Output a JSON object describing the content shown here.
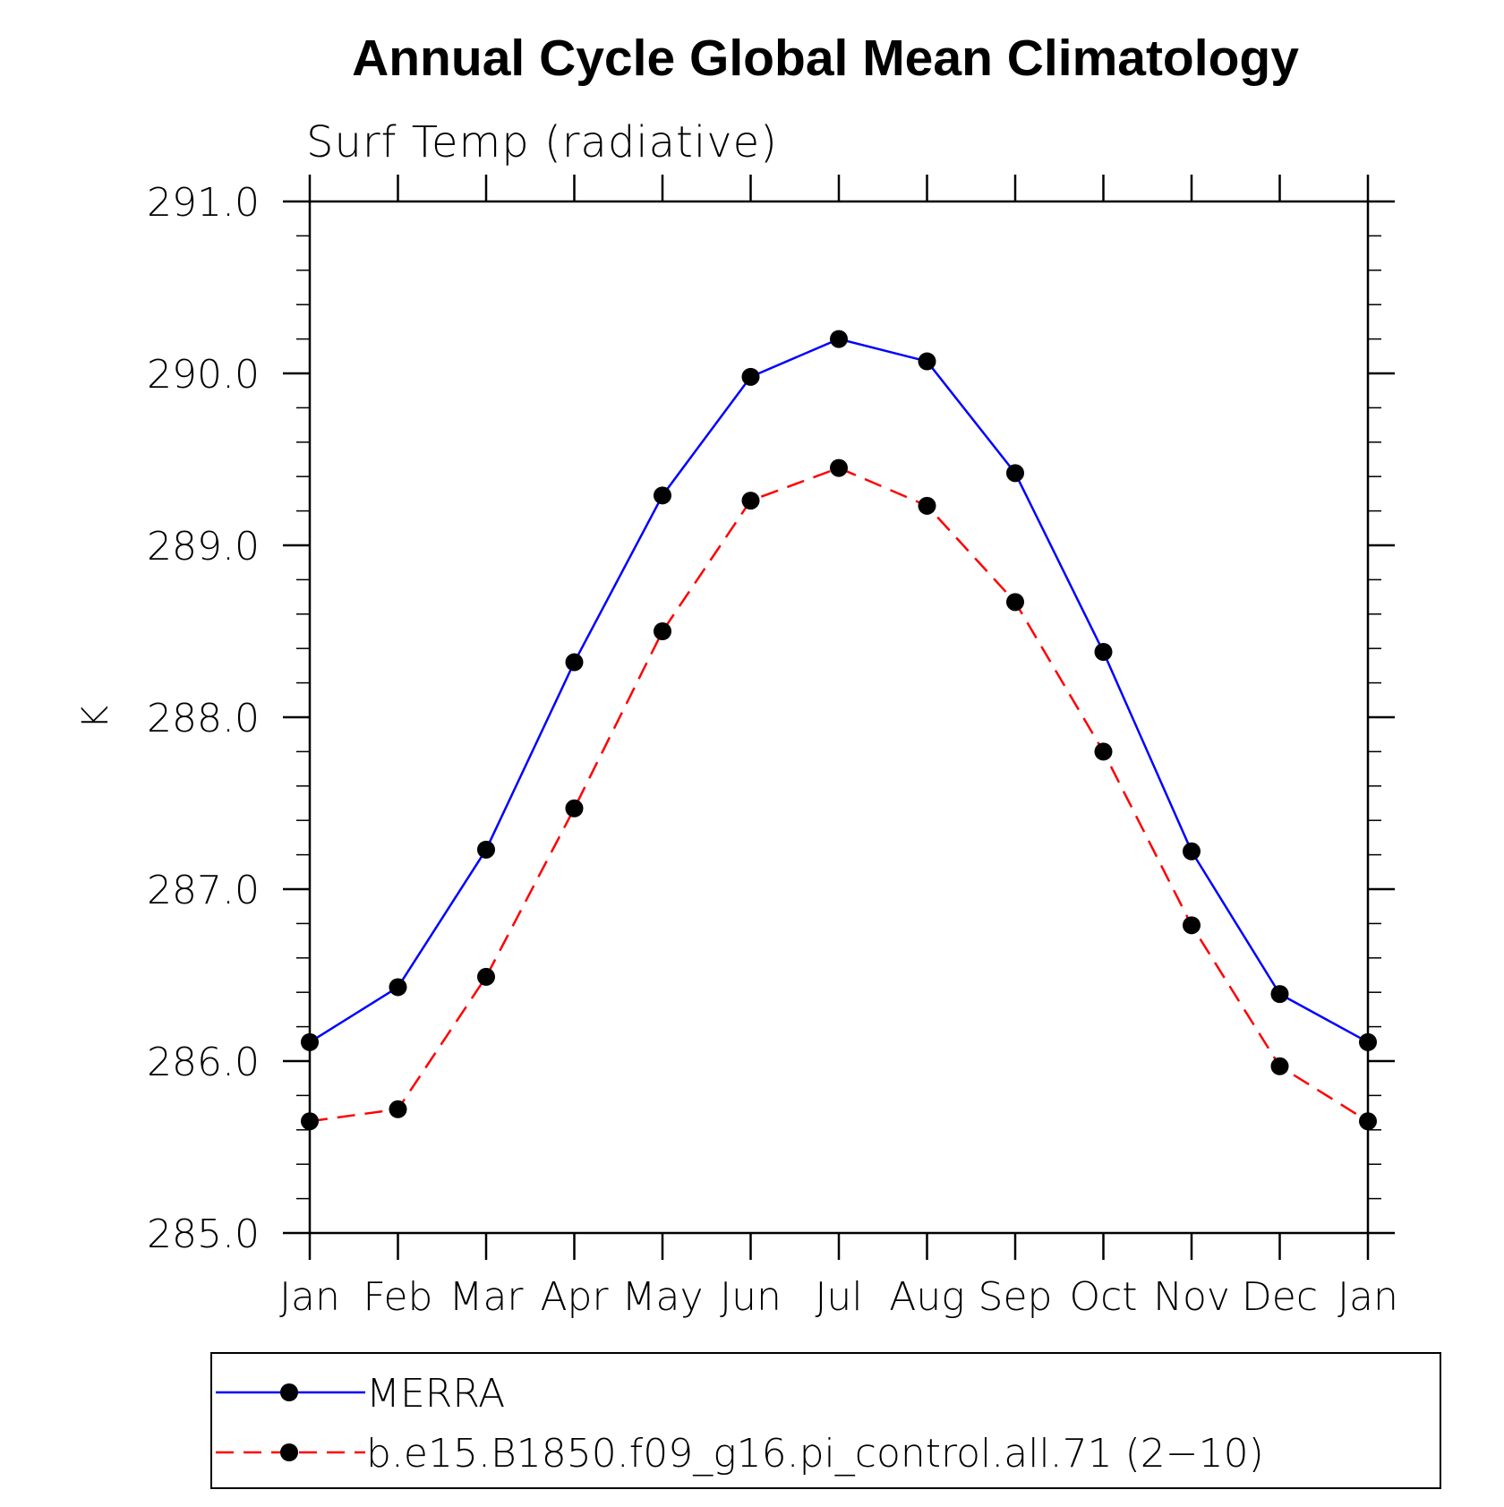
{
  "chart_data": {
    "type": "line",
    "title": "Annual Cycle Global Mean Climatology",
    "subtitle": "Surf Temp (radiative)",
    "xlabel": "",
    "ylabel": "K",
    "ylim": [
      285.0,
      291.0
    ],
    "y_ticks": [
      "285.0",
      "286.0",
      "287.0",
      "288.0",
      "289.0",
      "290.0",
      "291.0"
    ],
    "y_tick_values": [
      285.0,
      286.0,
      287.0,
      288.0,
      289.0,
      290.0,
      291.0
    ],
    "y_minor_step": 0.2,
    "categories": [
      "Jan",
      "Feb",
      "Mar",
      "Apr",
      "May",
      "Jun",
      "Jul",
      "Aug",
      "Sep",
      "Oct",
      "Nov",
      "Dec",
      "Jan"
    ],
    "grid": false,
    "legend_position": "bottom",
    "series": [
      {
        "name": "MERRA",
        "color": "#0000ff",
        "line_style": "solid",
        "marker": "filled-circle",
        "values": [
          286.11,
          286.43,
          287.23,
          288.32,
          289.29,
          289.98,
          290.2,
          290.07,
          289.42,
          288.38,
          287.22,
          286.39,
          286.11
        ]
      },
      {
        "name": "b.e15.B1850.f09_g16.pi_control.all.71 (2−10)",
        "color": "#ff0000",
        "line_style": "dashed",
        "marker": "filled-circle",
        "values": [
          285.65,
          285.72,
          286.49,
          287.47,
          288.5,
          289.26,
          289.45,
          289.23,
          288.67,
          287.8,
          286.79,
          285.97,
          285.65
        ]
      }
    ]
  }
}
